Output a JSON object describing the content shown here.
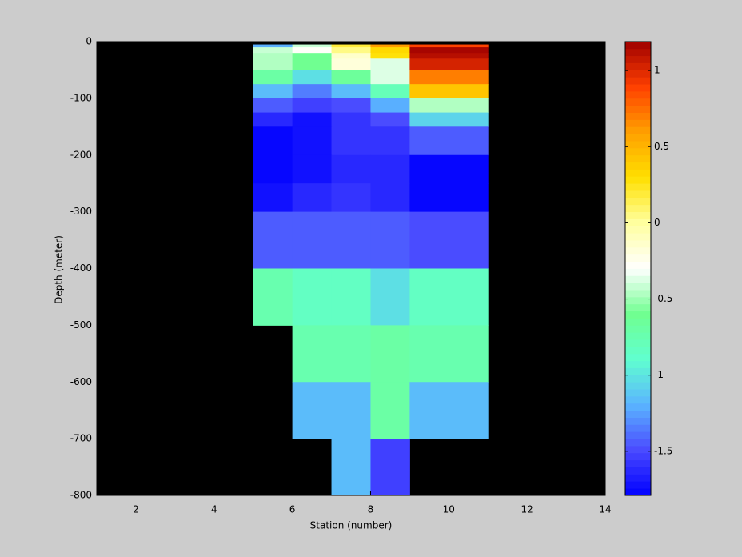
{
  "chart_data": {
    "type": "heatmap",
    "x_label": "Station (number)",
    "y_label": "Depth (meter)",
    "x": [
      5,
      6,
      7,
      8,
      9,
      11
    ],
    "y": [
      -5,
      -10,
      -20,
      -30,
      -50,
      -75,
      -100,
      -125,
      -150,
      -200,
      -250,
      -300,
      -400,
      -500,
      -600,
      -700,
      -800
    ],
    "values": [
      [
        -1.2,
        -0.4,
        0.2,
        0.6,
        0.9
      ],
      [
        -0.4,
        -0.3,
        0.05,
        0.35,
        1.15
      ],
      [
        -0.45,
        -0.6,
        -0.15,
        0.3,
        1.1
      ],
      [
        -0.45,
        -0.6,
        -0.2,
        -0.35,
        1.05
      ],
      [
        -0.7,
        -1.0,
        -0.65,
        -0.35,
        0.7
      ],
      [
        -1.15,
        -1.35,
        -1.15,
        -0.8,
        0.4
      ],
      [
        -1.45,
        -1.55,
        -1.5,
        -1.2,
        -0.45
      ],
      [
        -1.65,
        -1.7,
        -1.6,
        -1.5,
        -1.05
      ],
      [
        -1.79,
        -1.72,
        -1.6,
        -1.6,
        -1.45
      ],
      [
        -1.79,
        -1.7,
        -1.62,
        -1.62,
        -1.79
      ],
      [
        -1.7,
        -1.62,
        -1.6,
        -1.62,
        -1.79
      ],
      [
        -1.45,
        -1.42,
        -1.42,
        -1.42,
        -1.5
      ],
      [
        -0.75,
        -0.85,
        -0.85,
        -1.0,
        -0.85
      ],
      [
        null,
        -0.75,
        -0.75,
        -0.7,
        -0.75
      ],
      [
        null,
        -1.15,
        -1.15,
        -0.7,
        -1.15
      ],
      [
        null,
        null,
        -1.15,
        -1.55,
        null
      ]
    ],
    "xlim": [
      1,
      14
    ],
    "xticks": [
      2,
      4,
      6,
      8,
      10,
      12,
      14
    ],
    "ylim": [
      -800,
      0
    ],
    "yticks": [
      -800,
      -700,
      -600,
      -500,
      -400,
      -300,
      -200,
      -100,
      0
    ],
    "clim": [
      -1.79,
      1.19
    ],
    "cticks": [
      -1.5,
      -1,
      -0.5,
      0,
      0.5,
      1
    ],
    "colormap": [
      "#0000ff",
      "#4a4aff",
      "#5ab4ff",
      "#60ffd0",
      "#70ff90",
      "#ffffff",
      "#ffffa0",
      "#ffe000",
      "#ffa000",
      "#ff4000",
      "#a00000"
    ],
    "levels": 64,
    "background": "#000000"
  }
}
